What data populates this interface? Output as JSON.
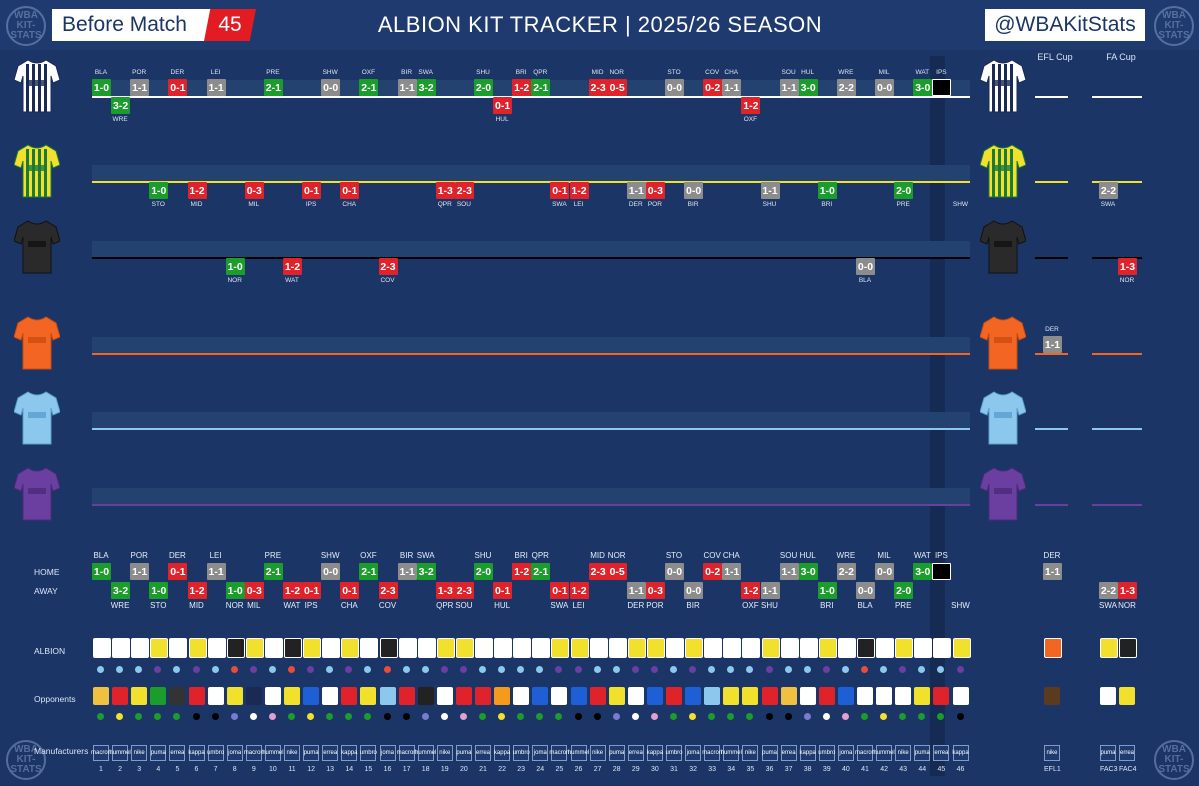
{
  "header": {
    "left_label": "Before Match",
    "count": "45",
    "title": "ALBION KIT TRACKER | 2025/26 SEASON",
    "handle": "@WBAKitStats",
    "logo": "WBA KIT-STATS"
  },
  "cups": {
    "efl": "EFL Cup",
    "fa": "FA Cup"
  },
  "rows_labels": {
    "home": "HOME",
    "away": "AWAY",
    "albion": "ALBION",
    "opponents": "Opponents",
    "manufacturers": "Manufacturers"
  },
  "colors": {
    "bg": "#1b3566",
    "win": "#1b9d2b",
    "draw": "#8c8c8c",
    "loss": "#e0232a",
    "home_line": "#ffffff",
    "away_line": "#f1e12d",
    "third_line": "#000000",
    "orange_line": "#f26522",
    "blue_line": "#8cc8ee",
    "purple_line": "#6a3fa0"
  },
  "kits": [
    {
      "name": "home-kit",
      "line": "#ffffff"
    },
    {
      "name": "away-kit",
      "line": "#f1e12d"
    },
    {
      "name": "third-kit",
      "line": "#000000"
    },
    {
      "name": "orange-kit",
      "line": "#f26522"
    },
    {
      "name": "blue-kit",
      "line": "#8cc8ee"
    },
    {
      "name": "purple-kit",
      "line": "#6a3fa0"
    }
  ],
  "matches": [
    {
      "n": "1",
      "opp": "BLA",
      "score": "1-0",
      "r": "W",
      "ha": "H"
    },
    {
      "n": "2",
      "opp": "WRE",
      "score": "3-2",
      "r": "W",
      "ha": "A"
    },
    {
      "n": "3",
      "opp": "POR",
      "score": "1-1",
      "r": "D",
      "ha": "H"
    },
    {
      "n": "4",
      "opp": "STO",
      "score": "1-0",
      "r": "W",
      "ha": "A"
    },
    {
      "n": "5",
      "opp": "DER",
      "score": "0-1",
      "r": "L",
      "ha": "H"
    },
    {
      "n": "6",
      "opp": "MID",
      "score": "1-2",
      "r": "L",
      "ha": "A"
    },
    {
      "n": "7",
      "opp": "LEI",
      "score": "1-1",
      "r": "D",
      "ha": "H"
    },
    {
      "n": "8",
      "opp": "NOR",
      "score": "1-0",
      "r": "W",
      "ha": "A"
    },
    {
      "n": "9",
      "opp": "MIL",
      "score": "0-3",
      "r": "L",
      "ha": "A"
    },
    {
      "n": "10",
      "opp": "PRE",
      "score": "2-1",
      "r": "W",
      "ha": "H"
    },
    {
      "n": "11",
      "opp": "WAT",
      "score": "1-2",
      "r": "L",
      "ha": "A"
    },
    {
      "n": "12",
      "opp": "IPS",
      "score": "0-1",
      "r": "L",
      "ha": "A"
    },
    {
      "n": "13",
      "opp": "SHW",
      "score": "0-0",
      "r": "D",
      "ha": "H"
    },
    {
      "n": "14",
      "opp": "CHA",
      "score": "0-1",
      "r": "L",
      "ha": "A"
    },
    {
      "n": "15",
      "opp": "OXF",
      "score": "2-1",
      "r": "W",
      "ha": "H"
    },
    {
      "n": "16",
      "opp": "COV",
      "score": "2-3",
      "r": "L",
      "ha": "A"
    },
    {
      "n": "17",
      "opp": "BIR",
      "score": "1-1",
      "r": "D",
      "ha": "H"
    },
    {
      "n": "18",
      "opp": "SWA",
      "score": "3-2",
      "r": "W",
      "ha": "H"
    },
    {
      "n": "19",
      "opp": "QPR",
      "score": "1-3",
      "r": "L",
      "ha": "A"
    },
    {
      "n": "20",
      "opp": "SOU",
      "score": "2-3",
      "r": "L",
      "ha": "A"
    },
    {
      "n": "21",
      "opp": "SHU",
      "score": "2-0",
      "r": "W",
      "ha": "H"
    },
    {
      "n": "22",
      "opp": "HUL",
      "score": "0-1",
      "r": "L",
      "ha": "A"
    },
    {
      "n": "23",
      "opp": "BRI",
      "score": "1-2",
      "r": "L",
      "ha": "H"
    },
    {
      "n": "24",
      "opp": "QPR",
      "score": "2-1",
      "r": "W",
      "ha": "H"
    },
    {
      "n": "25",
      "opp": "SWA",
      "score": "0-1",
      "r": "L",
      "ha": "A"
    },
    {
      "n": "26",
      "opp": "LEI",
      "score": "1-2",
      "r": "L",
      "ha": "A"
    },
    {
      "n": "27",
      "opp": "MID",
      "score": "2-3",
      "r": "L",
      "ha": "H"
    },
    {
      "n": "28",
      "opp": "NOR",
      "score": "0-5",
      "r": "L",
      "ha": "H"
    },
    {
      "n": "29",
      "opp": "DER",
      "score": "1-1",
      "r": "D",
      "ha": "A"
    },
    {
      "n": "30",
      "opp": "POR",
      "score": "0-3",
      "r": "L",
      "ha": "A"
    },
    {
      "n": "31",
      "opp": "STO",
      "score": "0-0",
      "r": "D",
      "ha": "H"
    },
    {
      "n": "32",
      "opp": "BIR",
      "score": "0-0",
      "r": "D",
      "ha": "A"
    },
    {
      "n": "33",
      "opp": "COV",
      "score": "0-2",
      "r": "L",
      "ha": "H"
    },
    {
      "n": "34",
      "opp": "CHA",
      "score": "1-1",
      "r": "D",
      "ha": "H"
    },
    {
      "n": "35",
      "opp": "OXF",
      "score": "1-2",
      "r": "L",
      "ha": "A"
    },
    {
      "n": "36",
      "opp": "SHU",
      "score": "1-1",
      "r": "D",
      "ha": "A"
    },
    {
      "n": "37",
      "opp": "SOU",
      "score": "1-1",
      "r": "D",
      "ha": "H"
    },
    {
      "n": "38",
      "opp": "HUL",
      "score": "3-0",
      "r": "W",
      "ha": "H"
    },
    {
      "n": "39",
      "opp": "BRI",
      "score": "1-0",
      "r": "W",
      "ha": "A"
    },
    {
      "n": "40",
      "opp": "WRE",
      "score": "2-2",
      "r": "D",
      "ha": "H"
    },
    {
      "n": "41",
      "opp": "BLA",
      "score": "0-0",
      "r": "D",
      "ha": "A"
    },
    {
      "n": "42",
      "opp": "MIL",
      "score": "0-0",
      "r": "D",
      "ha": "H"
    },
    {
      "n": "43",
      "opp": "PRE",
      "score": "2-0",
      "r": "W",
      "ha": "A"
    },
    {
      "n": "44",
      "opp": "WAT",
      "score": "3-0",
      "r": "W",
      "ha": "H"
    },
    {
      "n": "45",
      "opp": "IPS",
      "score": "",
      "r": "B",
      "ha": "H"
    },
    {
      "n": "46",
      "opp": "SHW",
      "score": "",
      "r": "N",
      "ha": "A"
    }
  ],
  "cup_matches": [
    {
      "n": "EFL1",
      "opp": "DER",
      "score": "1-1",
      "r": "D",
      "ha": "H"
    },
    {
      "n": "FAC3",
      "opp": "SWA",
      "score": "2-2",
      "r": "D",
      "ha": "A"
    },
    {
      "n": "FAC4",
      "opp": "NOR",
      "score": "1-3",
      "r": "L",
      "ha": "A"
    }
  ],
  "round_markers": {
    "efl": "EFL1",
    "fac3": "FAC3",
    "fac4": "FAC4"
  },
  "brands": [
    "macron",
    "hummel",
    "nike",
    "puma",
    "errea",
    "kappa",
    "umbro",
    "joma"
  ]
}
